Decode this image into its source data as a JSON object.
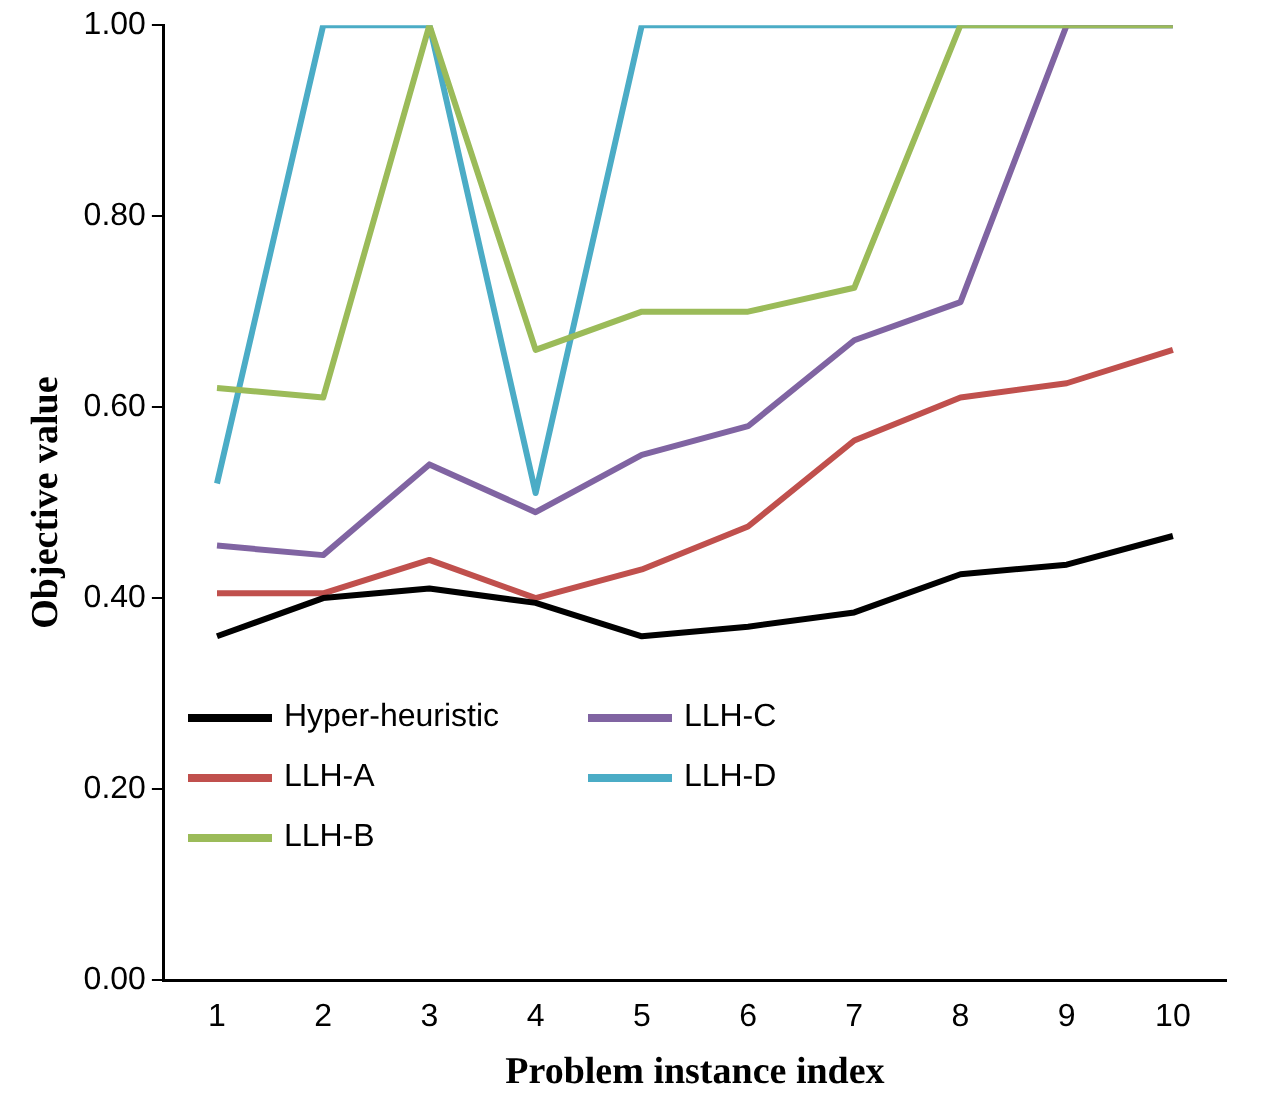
{
  "chart_data": {
    "type": "line",
    "xlabel": "Problem instance index",
    "ylabel": "Objective value",
    "categories": [
      "1",
      "2",
      "3",
      "4",
      "5",
      "6",
      "7",
      "8",
      "9",
      "10"
    ],
    "series": [
      {
        "name": "Hyper-heuristic",
        "color": "#000000",
        "values": [
          0.36,
          0.4,
          0.41,
          0.395,
          0.36,
          0.37,
          0.385,
          0.425,
          0.435,
          0.465
        ]
      },
      {
        "name": "LLH-A",
        "color": "#c0504d",
        "values": [
          0.405,
          0.405,
          0.44,
          0.4,
          0.43,
          0.475,
          0.565,
          0.61,
          0.625,
          0.66
        ]
      },
      {
        "name": "LLH-B",
        "color": "#9bbb59",
        "values": [
          0.62,
          0.61,
          1.0,
          0.66,
          0.7,
          0.7,
          0.725,
          1.0,
          1.0,
          1.0
        ]
      },
      {
        "name": "LLH-C",
        "color": "#8064a2",
        "values": [
          0.455,
          0.445,
          0.54,
          0.49,
          0.55,
          0.58,
          0.67,
          0.71,
          1.0,
          1.0
        ]
      },
      {
        "name": "LLH-D",
        "color": "#4bacc6",
        "values": [
          0.52,
          1.0,
          1.0,
          0.51,
          1.0,
          1.0,
          1.0,
          1.0,
          1.0,
          1.0
        ]
      }
    ],
    "ylim": [
      0,
      1
    ],
    "yticks": [
      {
        "value": 0,
        "label": "0.00"
      },
      {
        "value": 0.2,
        "label": "0.20"
      },
      {
        "value": 0.4,
        "label": "0.40"
      },
      {
        "value": 0.6,
        "label": "0.60"
      },
      {
        "value": 0.8,
        "label": "0.80"
      },
      {
        "value": 1,
        "label": "1.00"
      }
    ],
    "grid": false,
    "legend": "bottom left",
    "marker": "none",
    "line_style": "solid"
  }
}
